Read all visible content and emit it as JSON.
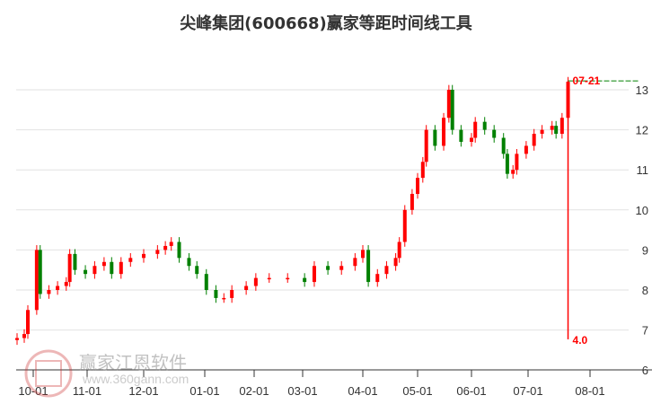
{
  "chart_data": {
    "type": "candlestick",
    "title": "尖峰集团(600668)赢家等距时间线工具",
    "ylim": [
      6,
      13.3
    ],
    "y_ticks": [
      "6",
      "7",
      "8",
      "9",
      "10",
      "11",
      "12",
      "13"
    ],
    "x_ticks": [
      "10-01",
      "11-01",
      "12-01",
      "01-01",
      "02-01",
      "03-01",
      "04-01",
      "05-01",
      "06-01",
      "07-01",
      "08-01"
    ],
    "grid": "horizontal",
    "colors": {
      "up": "#ff0000",
      "down": "#008000",
      "marker": "#ff0000",
      "level": "#008000"
    },
    "closes": [
      [
        "09-22",
        6.8
      ],
      [
        "09-26",
        6.9
      ],
      [
        "09-28",
        7.5
      ],
      [
        "10-03",
        9.0
      ],
      [
        "10-05",
        7.9
      ],
      [
        "10-10",
        8.0
      ],
      [
        "10-15",
        8.1
      ],
      [
        "10-20",
        8.2
      ],
      [
        "10-22",
        8.9
      ],
      [
        "10-25",
        8.5
      ],
      [
        "10-31",
        8.4
      ],
      [
        "11-05",
        8.6
      ],
      [
        "11-10",
        8.7
      ],
      [
        "11-14",
        8.4
      ],
      [
        "11-19",
        8.7
      ],
      [
        "11-24",
        8.8
      ],
      [
        "12-01",
        8.9
      ],
      [
        "12-08",
        9.0
      ],
      [
        "12-12",
        9.1
      ],
      [
        "12-15",
        9.2
      ],
      [
        "12-19",
        8.8
      ],
      [
        "12-24",
        8.6
      ],
      [
        "12-28",
        8.4
      ],
      [
        "01-02",
        8.0
      ],
      [
        "01-08",
        7.8
      ],
      [
        "01-13",
        7.8
      ],
      [
        "01-18",
        8.0
      ],
      [
        "01-27",
        8.1
      ],
      [
        "02-02",
        8.3
      ],
      [
        "02-10",
        8.3
      ],
      [
        "02-21",
        8.3
      ],
      [
        "03-02",
        8.2
      ],
      [
        "03-07",
        8.6
      ],
      [
        "03-14",
        8.5
      ],
      [
        "03-21",
        8.6
      ],
      [
        "03-28",
        8.8
      ],
      [
        "04-01",
        9.0
      ],
      [
        "04-04",
        8.2
      ],
      [
        "04-09",
        8.4
      ],
      [
        "04-14",
        8.6
      ],
      [
        "04-19",
        8.8
      ],
      [
        "04-21",
        9.2
      ],
      [
        "04-24",
        10.0
      ],
      [
        "04-28",
        10.4
      ],
      [
        "05-01",
        10.8
      ],
      [
        "05-04",
        11.2
      ],
      [
        "05-06",
        12.0
      ],
      [
        "05-11",
        11.6
      ],
      [
        "05-16",
        12.3
      ],
      [
        "05-19",
        13.0
      ],
      [
        "05-21",
        12.0
      ],
      [
        "05-26",
        11.7
      ],
      [
        "06-01",
        11.8
      ],
      [
        "06-03",
        12.2
      ],
      [
        "06-08",
        12.0
      ],
      [
        "06-13",
        11.8
      ],
      [
        "06-18",
        11.4
      ],
      [
        "06-20",
        10.9
      ],
      [
        "06-23",
        11.0
      ],
      [
        "06-25",
        11.4
      ],
      [
        "06-30",
        11.6
      ],
      [
        "07-04",
        11.9
      ],
      [
        "07-08",
        12.0
      ],
      [
        "07-13",
        12.1
      ],
      [
        "07-15",
        11.9
      ],
      [
        "07-18",
        12.3
      ],
      [
        "07-21",
        13.2
      ]
    ],
    "marker": {
      "date_label": "07-21",
      "value_label": "4.0"
    }
  },
  "watermark": {
    "name": "赢家江恩软件",
    "url": "www.360gann.com",
    "seal": "江赢恩家"
  }
}
